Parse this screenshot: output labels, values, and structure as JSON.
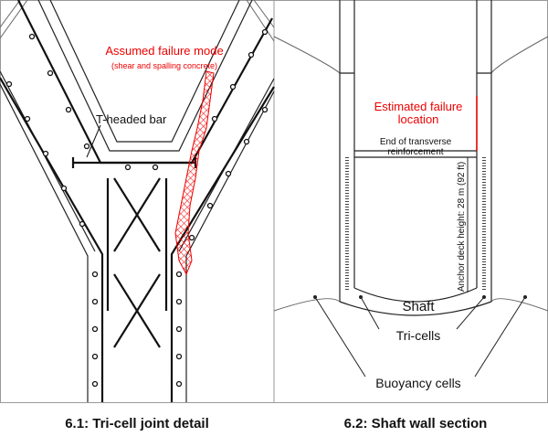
{
  "left_panel": {
    "failure_label": {
      "lines": [
        "Assumed failure mode",
        "(shear and spalling concrete)"
      ]
    },
    "bar_label": "T-headed bar",
    "caption": "6.1: Tri-cell joint detail"
  },
  "right_panel": {
    "failure_label": {
      "lines": [
        "Estimated failure",
        "location"
      ]
    },
    "reinforcement_label": {
      "lines": [
        "End of transverse",
        "reinforcement"
      ]
    },
    "height_label": "Anchor deck height: 28 m (92 ft)",
    "shaft_label": "Shaft",
    "tricells_label": "Tri-cells",
    "buoyancy_label": "Buoyancy cells",
    "caption": "6.2: Shaft wall section"
  }
}
